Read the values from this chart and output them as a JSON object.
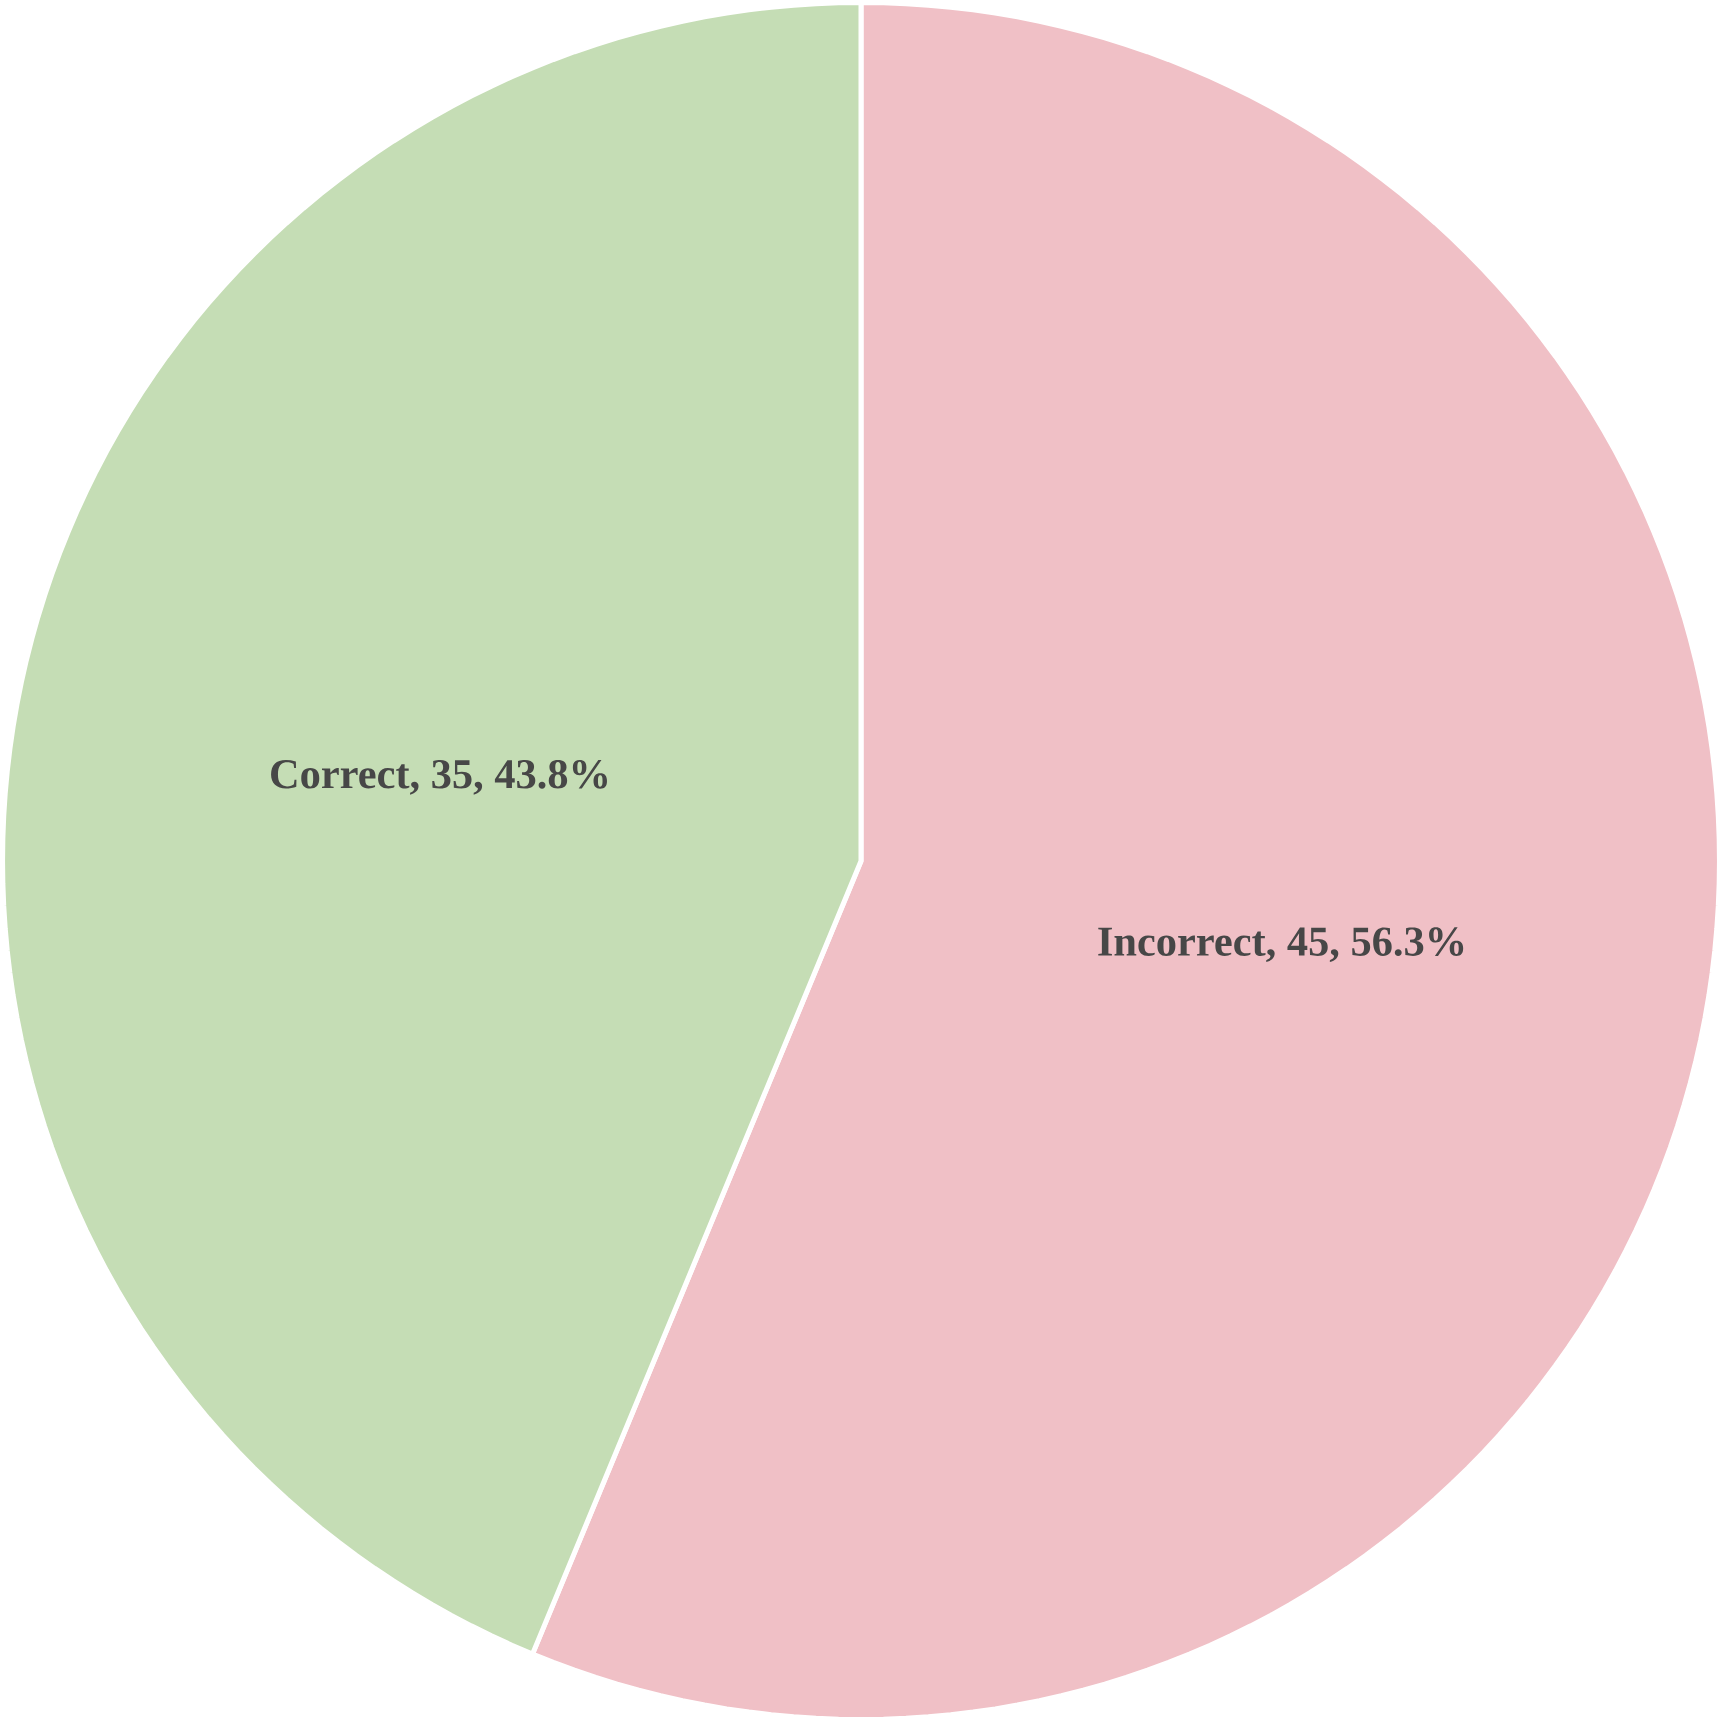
{
  "chart_data": {
    "type": "pie",
    "categories": [
      "Incorrect",
      "Correct"
    ],
    "values": [
      45,
      35
    ],
    "colors": [
      "#f0c0c6",
      "#c5ddb5"
    ],
    "value_labels": [
      ", 45, 56.3%",
      ", 35, 43.8%"
    ]
  }
}
